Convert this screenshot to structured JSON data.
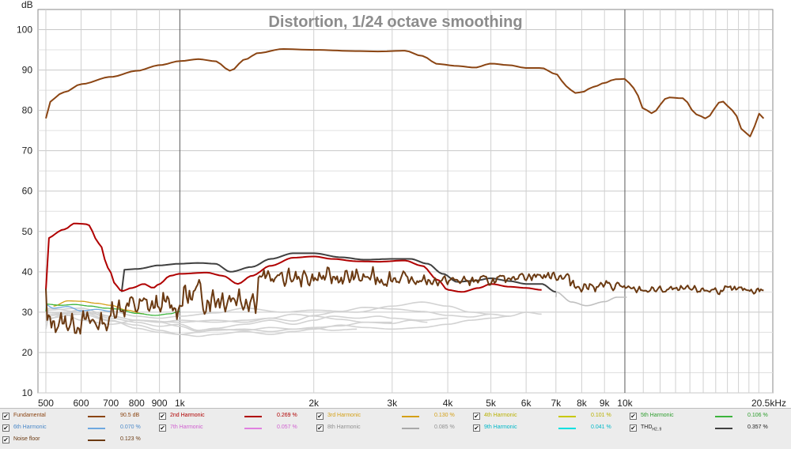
{
  "chart_data": {
    "type": "line",
    "title": "Distortion, 1/24 octave smoothing",
    "ylabel": "dB",
    "xlabel_unit": "kHz",
    "x_scale": "log",
    "xlim": [
      480,
      21500
    ],
    "ylim": [
      10,
      105
    ],
    "grid": true,
    "x_ticks": [
      500,
      600,
      700,
      800,
      900,
      1000,
      2000,
      3000,
      4000,
      5000,
      6000,
      7000,
      8000,
      9000,
      10000,
      20500
    ],
    "x_tick_labels": [
      "500",
      "600",
      "700",
      "800",
      "900",
      "1k",
      "2k",
      "3k",
      "4k",
      "5k",
      "6k",
      "7k",
      "8k",
      "9k",
      "10k",
      "20.5kHz"
    ],
    "x_major_ticks": [
      1000,
      10000
    ],
    "y_ticks": [
      10,
      20,
      30,
      40,
      50,
      60,
      70,
      80,
      90,
      100
    ],
    "y_tick_labels": [
      "10",
      "20",
      "30",
      "40",
      "50",
      "60",
      "70",
      "80",
      "90",
      "100"
    ],
    "legend_position": "bottom",
    "series": [
      {
        "key": "fundamental",
        "color": "#8b4513",
        "width": 2,
        "points": [
          [
            500,
            81.7
          ],
          [
            550,
            84.5
          ],
          [
            600,
            86.5
          ],
          [
            700,
            88.3
          ],
          [
            800,
            89.8
          ],
          [
            900,
            91.2
          ],
          [
            1000,
            92.2
          ],
          [
            1100,
            92.7
          ],
          [
            1200,
            92.2
          ],
          [
            1300,
            89.8
          ],
          [
            1400,
            92.6
          ],
          [
            1500,
            94.2
          ],
          [
            1700,
            95.2
          ],
          [
            2000,
            95
          ],
          [
            2500,
            94.7
          ],
          [
            2800,
            94.6
          ],
          [
            3200,
            94.8
          ],
          [
            3500,
            93.5
          ],
          [
            3800,
            91.5
          ],
          [
            4200,
            91
          ],
          [
            4600,
            90.6
          ],
          [
            5000,
            91.6
          ],
          [
            5500,
            91.2
          ],
          [
            6000,
            90.5
          ],
          [
            6500,
            90.5
          ],
          [
            7000,
            89
          ],
          [
            7400,
            86
          ],
          [
            7700,
            84.3
          ],
          [
            8000,
            84.5
          ],
          [
            8500,
            85.8
          ],
          [
            9000,
            86.8
          ],
          [
            9500,
            87.7
          ],
          [
            10000,
            87.8
          ],
          [
            10500,
            85.5
          ],
          [
            11000,
            80.5
          ],
          [
            11500,
            79.3
          ],
          [
            12500,
            83.2
          ],
          [
            13500,
            83
          ],
          [
            14500,
            79
          ],
          [
            15200,
            78
          ],
          [
            16500,
            82.3
          ],
          [
            17500,
            80
          ],
          [
            18500,
            74.7
          ],
          [
            19200,
            73.5
          ],
          [
            20000,
            79.2
          ],
          [
            20500,
            78
          ]
        ]
      },
      {
        "key": "second",
        "color": "#b00000",
        "width": 2,
        "points": [
          [
            500,
            48.2
          ],
          [
            550,
            50.5
          ],
          [
            580,
            52
          ],
          [
            620,
            51.8
          ],
          [
            660,
            47
          ],
          [
            690,
            41
          ],
          [
            720,
            36.5
          ],
          [
            740,
            35.2
          ],
          [
            780,
            36
          ],
          [
            830,
            37
          ],
          [
            870,
            36
          ],
          [
            900,
            37
          ],
          [
            950,
            39
          ],
          [
            1000,
            39.5
          ],
          [
            1150,
            39.8
          ],
          [
            1250,
            39
          ],
          [
            1350,
            37
          ],
          [
            1450,
            39
          ],
          [
            1600,
            41.5
          ],
          [
            1800,
            43.5
          ],
          [
            2000,
            43.8
          ],
          [
            2200,
            43.2
          ],
          [
            2500,
            42.6
          ],
          [
            2800,
            42.5
          ],
          [
            3200,
            42.8
          ],
          [
            3500,
            41.5
          ],
          [
            3800,
            38
          ],
          [
            4000,
            35.5
          ],
          [
            4300,
            35
          ],
          [
            4700,
            36
          ],
          [
            5000,
            37
          ],
          [
            5500,
            36.3
          ],
          [
            6000,
            36
          ],
          [
            6500,
            35.5
          ]
        ]
      },
      {
        "key": "thd",
        "color": "#404040",
        "width": 2,
        "points": [
          [
            740,
            40.5
          ],
          [
            800,
            40.7
          ],
          [
            900,
            41.6
          ],
          [
            1000,
            42
          ],
          [
            1100,
            42.2
          ],
          [
            1200,
            42
          ],
          [
            1300,
            40
          ],
          [
            1450,
            41.2
          ],
          [
            1600,
            43.2
          ],
          [
            1800,
            44.6
          ],
          [
            2000,
            44.6
          ],
          [
            2300,
            43.6
          ],
          [
            2600,
            43
          ],
          [
            3000,
            43.2
          ],
          [
            3300,
            43.2
          ],
          [
            3600,
            42
          ],
          [
            3900,
            39.5
          ],
          [
            4200,
            37.5
          ],
          [
            4600,
            37.8
          ],
          [
            5000,
            38.4
          ],
          [
            5500,
            37.7
          ],
          [
            6000,
            37
          ],
          [
            6500,
            37
          ],
          [
            7000,
            35
          ]
        ]
      },
      {
        "key": "thd_grey",
        "color": "#c0c0c0",
        "width": 1.6,
        "points": [
          [
            7000,
            35
          ],
          [
            7600,
            32.5
          ],
          [
            8200,
            31.6
          ],
          [
            9000,
            32.6
          ],
          [
            9600,
            33.7
          ],
          [
            10100,
            33.7
          ]
        ]
      },
      {
        "key": "fifth",
        "color": "#3cb43c",
        "width": 1.3,
        "points": [
          [
            500,
            32
          ],
          [
            540,
            31.7
          ],
          [
            580,
            31.9
          ],
          [
            630,
            31.5
          ],
          [
            680,
            31
          ],
          [
            720,
            30.8
          ],
          [
            800,
            29.7
          ],
          [
            880,
            29.2
          ],
          [
            950,
            29.6
          ],
          [
            1000,
            30.2
          ]
        ]
      },
      {
        "key": "third",
        "color": "#d4a017",
        "width": 1.3,
        "points": [
          [
            520,
            31.5
          ],
          [
            560,
            32.8
          ],
          [
            600,
            32.7
          ],
          [
            650,
            32.2
          ],
          [
            700,
            31.7
          ],
          [
            760,
            30.5
          ],
          [
            830,
            29.6
          ]
        ]
      },
      {
        "key": "sixth",
        "color": "#6ea8e0",
        "width": 1.3,
        "points": [
          [
            500,
            31.8
          ],
          [
            520,
            31
          ],
          [
            560,
            31.4
          ],
          [
            600,
            30.3
          ],
          [
            650,
            30.7
          ],
          [
            700,
            30.2
          ]
        ]
      }
    ],
    "harmonic_gray_curves": [
      [
        [
          500,
          30
        ],
        [
          600,
          29.5
        ],
        [
          700,
          30.2
        ],
        [
          800,
          29
        ],
        [
          900,
          28.5
        ],
        [
          1000,
          29
        ],
        [
          1200,
          29.8
        ],
        [
          1400,
          31
        ],
        [
          1700,
          30
        ],
        [
          2000,
          30.5
        ],
        [
          2500,
          30
        ],
        [
          3000,
          31.5
        ],
        [
          3500,
          32.5
        ],
        [
          4000,
          31.5
        ],
        [
          4500,
          30
        ],
        [
          5000,
          29.5
        ]
      ],
      [
        [
          500,
          30.5
        ],
        [
          600,
          31
        ],
        [
          700,
          29
        ],
        [
          800,
          28
        ],
        [
          900,
          27.5
        ],
        [
          1000,
          28
        ],
        [
          1200,
          27.5
        ],
        [
          1400,
          28
        ],
        [
          1600,
          28.5
        ],
        [
          1800,
          27.8
        ],
        [
          2000,
          29.2
        ],
        [
          2300,
          30.2
        ],
        [
          2600,
          31.2
        ],
        [
          3000,
          30.8
        ],
        [
          3500,
          30.2
        ],
        [
          4000,
          29.2
        ],
        [
          4500,
          28.8
        ],
        [
          5000,
          29.5
        ],
        [
          5500,
          29
        ],
        [
          6000,
          30
        ],
        [
          6500,
          29.5
        ]
      ],
      [
        [
          500,
          29
        ],
        [
          600,
          30.5
        ],
        [
          700,
          28.5
        ],
        [
          800,
          27.5
        ],
        [
          900,
          26.5
        ],
        [
          1000,
          27
        ],
        [
          1100,
          25.5
        ],
        [
          1200,
          26
        ],
        [
          1400,
          27
        ],
        [
          1600,
          28
        ],
        [
          1800,
          27
        ],
        [
          2000,
          28
        ],
        [
          2200,
          29
        ],
        [
          2500,
          28.5
        ],
        [
          2800,
          29
        ],
        [
          3000,
          28.5
        ],
        [
          3500,
          28
        ],
        [
          4000,
          28.5
        ]
      ],
      [
        [
          500,
          28.5
        ],
        [
          600,
          29.5
        ],
        [
          700,
          27.8
        ],
        [
          800,
          26.8
        ],
        [
          900,
          25.5
        ],
        [
          1000,
          24.5
        ],
        [
          1100,
          25
        ],
        [
          1200,
          25.8
        ],
        [
          1400,
          25.5
        ],
        [
          1600,
          26.2
        ],
        [
          1800,
          25.8
        ],
        [
          2000,
          26.2
        ],
        [
          2300,
          26.6
        ],
        [
          2600,
          27.5
        ],
        [
          3000,
          27.5
        ]
      ],
      [
        [
          500,
          31
        ],
        [
          600,
          30
        ],
        [
          700,
          29
        ],
        [
          800,
          28
        ],
        [
          1000,
          27.5
        ],
        [
          1200,
          28
        ],
        [
          1400,
          27.5
        ],
        [
          1600,
          28.5
        ],
        [
          1800,
          29.5
        ],
        [
          2000,
          29
        ],
        [
          2300,
          28.2
        ],
        [
          2600,
          27.5
        ],
        [
          3000,
          27.2
        ],
        [
          3300,
          28
        ],
        [
          3600,
          27.5
        ]
      ],
      [
        [
          500,
          29.5
        ],
        [
          600,
          30
        ],
        [
          700,
          28
        ],
        [
          800,
          26
        ],
        [
          900,
          25
        ],
        [
          1000,
          24.5
        ],
        [
          1100,
          24
        ],
        [
          1200,
          24.5
        ],
        [
          1400,
          25.2
        ],
        [
          1600,
          24.5
        ],
        [
          1800,
          25.2
        ],
        [
          2000,
          25.8
        ],
        [
          2300,
          26.8
        ],
        [
          2600,
          26.2
        ],
        [
          3000,
          25.8
        ],
        [
          3500,
          26.2
        ],
        [
          4000,
          27
        ],
        [
          4500,
          28
        ],
        [
          5000,
          28.5
        ],
        [
          5500,
          29
        ]
      ],
      [
        [
          500,
          28
        ],
        [
          550,
          29.5
        ],
        [
          600,
          28
        ],
        [
          700,
          27
        ],
        [
          800,
          28
        ],
        [
          900,
          27.5
        ],
        [
          1000,
          26.5
        ],
        [
          1100,
          25.2
        ],
        [
          1200,
          25.5
        ],
        [
          1400,
          25.8
        ],
        [
          1600,
          25.2
        ],
        [
          1800,
          25.8
        ],
        [
          2000,
          26
        ],
        [
          2200,
          25.5
        ],
        [
          2500,
          25.8
        ]
      ]
    ],
    "noise_floor": {
      "color": "#6b3a12",
      "width": 2,
      "seed": 13,
      "segments": [
        {
          "from": 500,
          "to": 700,
          "base": 27.5,
          "amp": 3.5
        },
        {
          "from": 700,
          "to": 1000,
          "base": 31.5,
          "amp": 4
        },
        {
          "from": 1000,
          "to": 1500,
          "base": 34,
          "amp": 5
        },
        {
          "from": 1500,
          "to": 3200,
          "base": 38.5,
          "amp": 2.8
        },
        {
          "from": 3200,
          "to": 5500,
          "base": 37.8,
          "amp": 1.6
        },
        {
          "from": 5500,
          "to": 7500,
          "base": 39,
          "amp": 1.4
        },
        {
          "from": 7500,
          "to": 10000,
          "base": 36.5,
          "amp": 1.6
        },
        {
          "from": 10000,
          "to": 20500,
          "base": 35.5,
          "amp": 1.2
        }
      ]
    },
    "legend": [
      {
        "name": "Fundamental",
        "value": "90.5 dB",
        "color": "#8b4513",
        "text_color": "#8b4513"
      },
      {
        "name": "2nd Harmonic",
        "value": "0.269 %",
        "color": "#b00000",
        "text_color": "#b00000"
      },
      {
        "name": "3rd Harmonic",
        "value": "0.130 %",
        "color": "#d4a017",
        "text_color": "#d4a017"
      },
      {
        "name": "4th Harmonic",
        "value": "0.101 %",
        "color": "#c8c800",
        "text_color": "#b8b000"
      },
      {
        "name": "5th Harmonic",
        "value": "0.106 %",
        "color": "#3cb43c",
        "text_color": "#2e9e2e"
      },
      {
        "name": "6th Harmonic",
        "value": "0.070 %",
        "color": "#6ea8e0",
        "text_color": "#4a88c8"
      },
      {
        "name": "7th Harmonic",
        "value": "0.057 %",
        "color": "#e080e0",
        "text_color": "#d060d0"
      },
      {
        "name": "8th Harmonic",
        "value": "0.085 %",
        "color": "#a8a8a8",
        "text_color": "#909090"
      },
      {
        "name": "9th Harmonic",
        "value": "0.041 %",
        "color": "#00e0e0",
        "text_color": "#00b8c8"
      },
      {
        "name": "THD",
        "name_sub": "H2..9",
        "value": "0.357 %",
        "color": "#404040",
        "text_color": "#202020"
      },
      {
        "name": "Noise floor",
        "value": "0.123 %",
        "color": "#6b3a12",
        "text_color": "#6b3a12"
      }
    ]
  }
}
